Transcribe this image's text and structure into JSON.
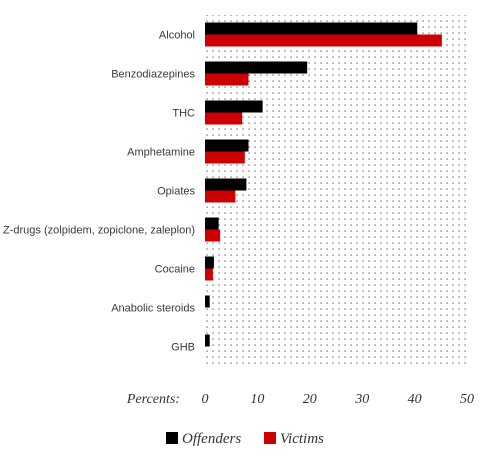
{
  "chart_data": {
    "type": "bar",
    "orientation": "horizontal",
    "categories": [
      "Alcohol",
      "Benzodiazepines",
      "THC",
      "Amphetamine",
      "Opiates",
      "Z-drugs (zolpidem, zopiclone, zaleplon)",
      "Cocaine",
      "Anabolic steroids",
      "GHB"
    ],
    "series": [
      {
        "name": "Offenders",
        "color": "#000000",
        "values": [
          40.5,
          19.5,
          11,
          8.3,
          7.9,
          2.6,
          1.7,
          0.9,
          0.9
        ]
      },
      {
        "name": "Victims",
        "color": "#cc0000",
        "values": [
          45.2,
          8.3,
          7.1,
          7.6,
          5.8,
          2.9,
          1.5,
          0,
          0
        ]
      }
    ],
    "x_axis_label": "Percents:",
    "xlim": [
      0,
      50
    ],
    "xticks": [
      "0",
      "10",
      "20",
      "30",
      "40",
      "50"
    ],
    "plot_background": "dotted",
    "legend_position": "bottom"
  }
}
